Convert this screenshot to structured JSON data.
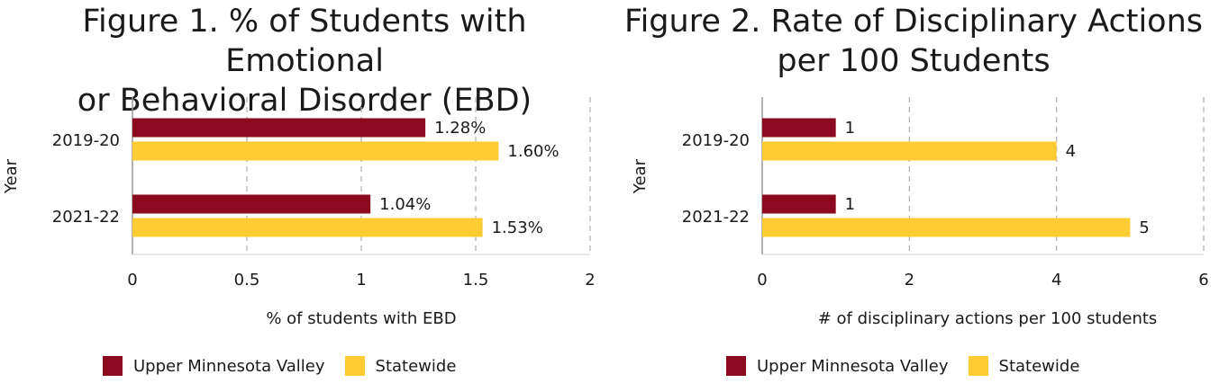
{
  "chart_data": [
    {
      "type": "bar",
      "orientation": "horizontal",
      "title_lines": [
        "Figure 1. % of Students with Emotional",
        "or Behavioral Disorder (EBD)"
      ],
      "xlabel": "% of students with EBD",
      "ylabel": "Year",
      "categories": [
        "2019-20",
        "2021-22"
      ],
      "xlim": [
        0,
        2
      ],
      "xticks": [
        "0",
        "0.5",
        "1",
        "1.5",
        "2"
      ],
      "xtick_values": [
        0,
        0.5,
        1,
        1.5,
        2
      ],
      "series": [
        {
          "name": "Upper Minnesota Valley",
          "color": "#8b0a1f",
          "values": [
            1.28,
            1.04
          ],
          "labels": [
            "1.28%",
            "1.04%"
          ]
        },
        {
          "name": "Statewide",
          "color": "#fdcc33",
          "values": [
            1.6,
            1.53
          ],
          "labels": [
            "1.60%",
            "1.53%"
          ]
        }
      ],
      "grid": "vertical-dashed",
      "legend": "bottom"
    },
    {
      "type": "bar",
      "orientation": "horizontal",
      "title_lines": [
        "Figure 2. Rate of Disciplinary Actions",
        "per 100 Students"
      ],
      "xlabel": "# of disciplinary actions per 100 students",
      "ylabel": "Year",
      "categories": [
        "2019-20",
        "2021-22"
      ],
      "xlim": [
        0,
        6
      ],
      "xticks": [
        "0",
        "2",
        "4",
        "6"
      ],
      "xtick_values": [
        0,
        2,
        4,
        6
      ],
      "series": [
        {
          "name": "Upper Minnesota Valley",
          "color": "#8b0a1f",
          "values": [
            1,
            1
          ],
          "labels": [
            "1",
            "1"
          ]
        },
        {
          "name": "Statewide",
          "color": "#fdcc33",
          "values": [
            4,
            5
          ],
          "labels": [
            "4",
            "5"
          ]
        }
      ],
      "grid": "vertical-dashed",
      "legend": "bottom"
    }
  ]
}
